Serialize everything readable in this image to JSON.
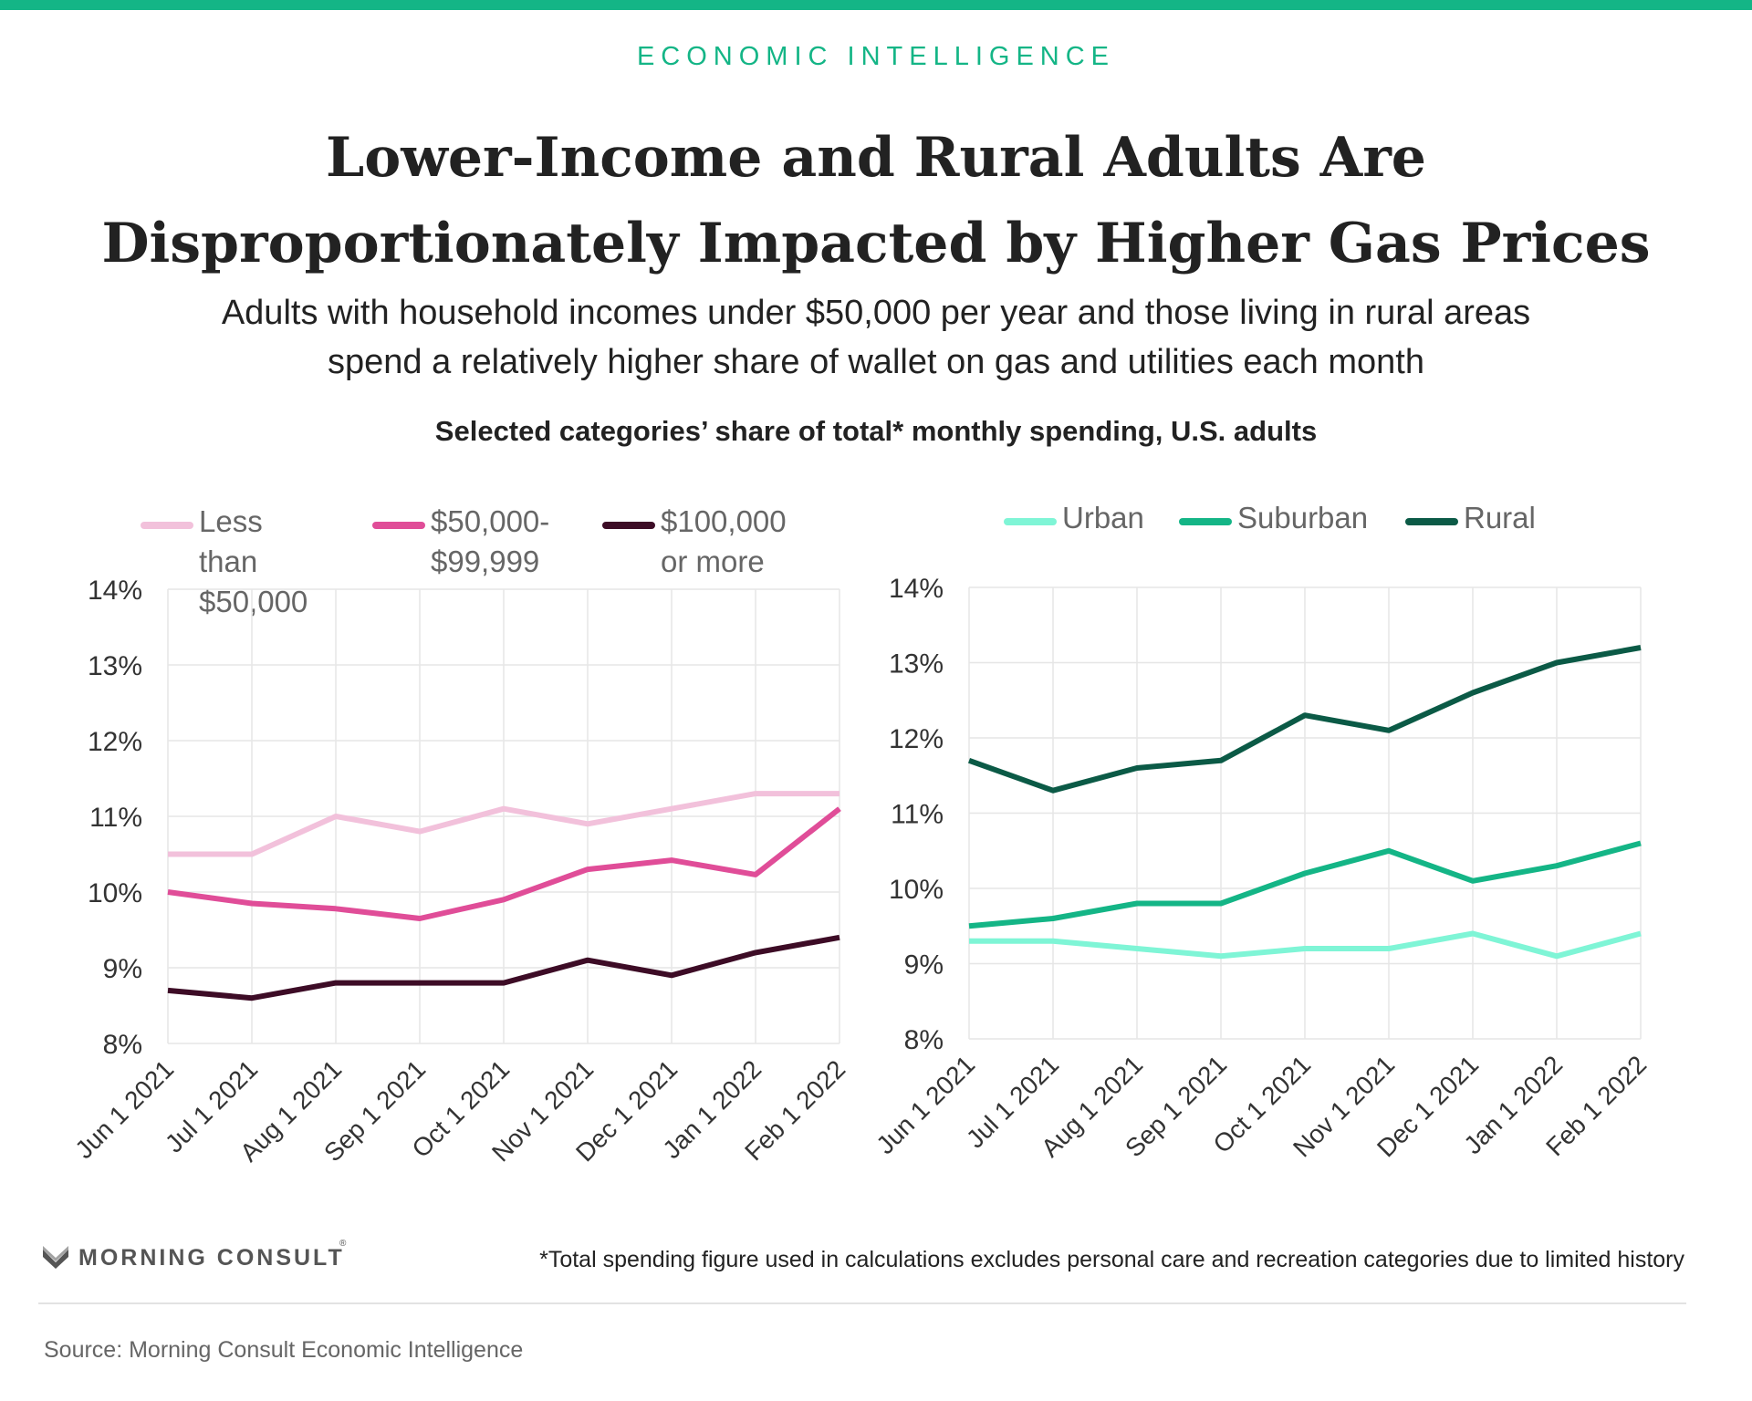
{
  "header": {
    "kicker": "ECONOMIC INTELLIGENCE",
    "title_line1": "Lower-Income and Rural Adults Are",
    "title_line2": "Disproportionately Impacted by Higher Gas Prices",
    "subtitle_line1": "Adults with household incomes under $50,000 per year and those living in rural areas",
    "subtitle_line2": "spend a relatively higher share of wallet on gas and utilities each month",
    "chart_heading": "Selected categories’ share of total* monthly spending, U.S. adults"
  },
  "colors": {
    "accent": "#14b586",
    "gridline": "#e6e6e6"
  },
  "chart_data": [
    {
      "type": "line",
      "categories": [
        "Jun 1 2021",
        "Jul 1 2021",
        "Aug 1 2021",
        "Sep 1 2021",
        "Oct 1 2021",
        "Nov 1 2021",
        "Dec 1 2021",
        "Jan 1 2022",
        "Feb 1 2022"
      ],
      "ylim": [
        8,
        14
      ],
      "yticks": [
        8,
        9,
        10,
        11,
        12,
        13,
        14
      ],
      "ytick_labels": [
        "8%",
        "9%",
        "10%",
        "11%",
        "12%",
        "13%",
        "14%"
      ],
      "grid": true,
      "legend_position": "top",
      "series": [
        {
          "name": "Less than\n$50,000",
          "color": "#f2c1db",
          "values": [
            10.5,
            10.5,
            11.0,
            10.8,
            11.1,
            10.9,
            11.1,
            11.3,
            11.3
          ]
        },
        {
          "name": "$50,000-\n$99,999",
          "color": "#e04d98",
          "values": [
            10.0,
            9.85,
            9.78,
            9.65,
            9.9,
            10.3,
            10.42,
            10.23,
            11.1
          ]
        },
        {
          "name": "$100,000\nor more",
          "color": "#3d0c26",
          "values": [
            8.7,
            8.6,
            8.8,
            8.8,
            8.8,
            9.1,
            8.9,
            9.2,
            9.4
          ]
        }
      ]
    },
    {
      "type": "line",
      "categories": [
        "Jun 1 2021",
        "Jul 1 2021",
        "Aug 1 2021",
        "Sep 1 2021",
        "Oct 1 2021",
        "Nov 1 2021",
        "Dec 1 2021",
        "Jan 1 2022",
        "Feb 1 2022"
      ],
      "ylim": [
        8,
        14
      ],
      "yticks": [
        8,
        9,
        10,
        11,
        12,
        13,
        14
      ],
      "ytick_labels": [
        "8%",
        "9%",
        "10%",
        "11%",
        "12%",
        "13%",
        "14%"
      ],
      "grid": true,
      "legend_position": "top",
      "series": [
        {
          "name": "Urban",
          "color": "#7ff5d6",
          "values": [
            9.3,
            9.3,
            9.2,
            9.1,
            9.2,
            9.2,
            9.4,
            9.1,
            9.4
          ]
        },
        {
          "name": "Suburban",
          "color": "#14b586",
          "values": [
            9.5,
            9.6,
            9.8,
            9.8,
            10.2,
            10.5,
            10.1,
            10.3,
            10.6
          ]
        },
        {
          "name": "Rural",
          "color": "#0b5a46",
          "values": [
            11.7,
            11.3,
            11.6,
            11.7,
            12.3,
            12.1,
            12.6,
            13.0,
            13.2
          ]
        }
      ]
    }
  ],
  "footer": {
    "logo_text": "MORNING CONSULT",
    "logo_tm": "®",
    "footnote": "*Total spending figure used in calculations excludes personal care and recreation categories due to limited history",
    "source": "Source: Morning Consult Economic Intelligence"
  }
}
